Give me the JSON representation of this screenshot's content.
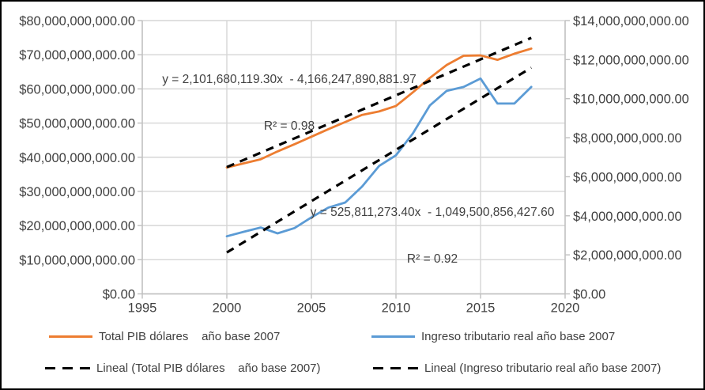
{
  "chart_data": {
    "type": "line",
    "grid": true,
    "legend_position": "bottom",
    "x": [
      2000,
      2001,
      2002,
      2003,
      2004,
      2005,
      2006,
      2007,
      2008,
      2009,
      2010,
      2011,
      2012,
      2013,
      2014,
      2015,
      2016,
      2017,
      2018
    ],
    "x_axis": {
      "min": 1995,
      "max": 2020,
      "tick_values": [
        1995,
        2000,
        2005,
        2010,
        2015,
        2020
      ],
      "tick_labels": [
        "1995",
        "2000",
        "2005",
        "2010",
        "2015",
        "2020"
      ]
    },
    "y_left_axis": {
      "min": 0,
      "max": 80000000000,
      "tick_values": [
        80000000000,
        70000000000,
        60000000000,
        50000000000,
        40000000000,
        30000000000,
        20000000000,
        10000000000,
        0
      ],
      "tick_labels": [
        "$80,000,000,000.00",
        "$70,000,000,000.00",
        "$60,000,000,000.00",
        "$50,000,000,000.00",
        "$40,000,000,000.00",
        "$30,000,000,000.00",
        "$20,000,000,000.00",
        "$10,000,000,000.00",
        "$0.00"
      ]
    },
    "y_right_axis": {
      "min": 0,
      "max": 14000000000,
      "tick_values": [
        14000000000,
        12000000000,
        10000000000,
        8000000000,
        6000000000,
        4000000000,
        2000000000,
        0
      ],
      "tick_labels": [
        "$14,000,000,000.00",
        "$12,000,000,000.00",
        "$10,000,000,000.00",
        "$8,000,000,000.00",
        "$6,000,000,000.00",
        "$4,000,000,000.00",
        "$2,000,000,000.00",
        "$0.00"
      ]
    },
    "series": [
      {
        "name": "Total PIB dólares    año base 2007",
        "axis": "left",
        "color": "#ED7D31",
        "values": [
          37000000000,
          38200000000,
          39400000000,
          41700000000,
          43800000000,
          46000000000,
          48200000000,
          50300000000,
          52400000000,
          53400000000,
          55000000000,
          59000000000,
          63200000000,
          67000000000,
          69700000000,
          69800000000,
          68500000000,
          70300000000,
          71800000000
        ]
      },
      {
        "name": "Ingreso tributario real año base 2007",
        "axis": "right",
        "color": "#5B9BD5",
        "values": [
          2950000000,
          3180000000,
          3400000000,
          3100000000,
          3370000000,
          3920000000,
          4420000000,
          4680000000,
          5500000000,
          6550000000,
          7100000000,
          8220000000,
          9650000000,
          10400000000,
          10600000000,
          11030000000,
          9750000000,
          9750000000,
          10600000000
        ]
      }
    ],
    "trendlines": [
      {
        "name": "Lineal (Total PIB dólares    año base 2007)",
        "axis": "left",
        "color": "#000000",
        "slope": 2101680119.3,
        "intercept": -4166247890881.97,
        "x_start": 2000,
        "x_end": 2018,
        "equation": "y = 2,101,680,119.30x  - 4,166,247,890,881.97",
        "r2_label": "R² = 0.98"
      },
      {
        "name": "Lineal (Ingreso tributario real año base 2007)",
        "axis": "right",
        "color": "#000000",
        "slope": 525811273.4,
        "intercept": -1049500856427.6,
        "x_start": 2000,
        "x_end": 2018,
        "equation": "y = 525,811,273.40x  - 1,049,500,856,427.60",
        "r2_label": "R² = 0.92"
      }
    ],
    "legend": {
      "items": [
        {
          "label": "Total PIB dólares    año base 2007",
          "swatch": "solid",
          "color": "#ED7D31"
        },
        {
          "label": "Ingreso tributario real año base 2007",
          "swatch": "solid",
          "color": "#5B9BD5"
        },
        {
          "label": "Lineal (Total PIB dólares    año base 2007)",
          "swatch": "dashed",
          "color": "#000000"
        },
        {
          "label": "Lineal (Ingreso tributario real año base 2007)",
          "swatch": "dashed",
          "color": "#000000"
        }
      ]
    },
    "colors": {
      "gridline": "#D6D6D6",
      "axis_line": "#BFBFBF",
      "axis_text": "#404040"
    }
  }
}
